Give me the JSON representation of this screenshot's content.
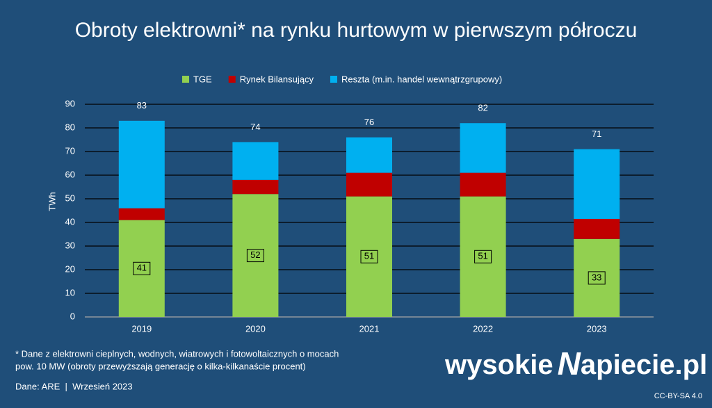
{
  "chart_data": {
    "type": "bar",
    "stacked": true,
    "title": "Obroty elektrowni* na rynku hurtowym w pierwszym półroczu",
    "y_label": "TWh",
    "categories": [
      "2019",
      "2020",
      "2021",
      "2022",
      "2023"
    ],
    "series": [
      {
        "name": "TGE",
        "color": "#92d050",
        "values": [
          41,
          52,
          51,
          51,
          33
        ]
      },
      {
        "name": "Rynek Bilansujący",
        "color": "#c00000",
        "values": [
          5,
          6,
          10,
          10,
          8.5
        ]
      },
      {
        "name": "Reszta (m.in. handel wewnątrzgrupowy)",
        "color": "#00b0f0",
        "values": [
          37,
          16,
          15,
          21,
          29.5
        ]
      }
    ],
    "totals": [
      83,
      74,
      76,
      82,
      71
    ],
    "ylim": [
      0,
      90
    ],
    "yticks": [
      0,
      10,
      20,
      30,
      40,
      50,
      60,
      70,
      80,
      90
    ],
    "grid": true,
    "legend": "top"
  },
  "footer": {
    "note_lines": [
      "* Dane z elektrowni cieplnych, wodnych, wiatrowych i fotowoltaicznych o mocach",
      "pow. 10 MW (obroty przewyższają generację o kilka-kilkanaście procent)"
    ],
    "source": "Dane: ARE  |  Wrzesień 2023",
    "brand": [
      "wysokie",
      "N",
      "apiecie.pl"
    ],
    "license": "CC-BY-SA 4.0"
  }
}
